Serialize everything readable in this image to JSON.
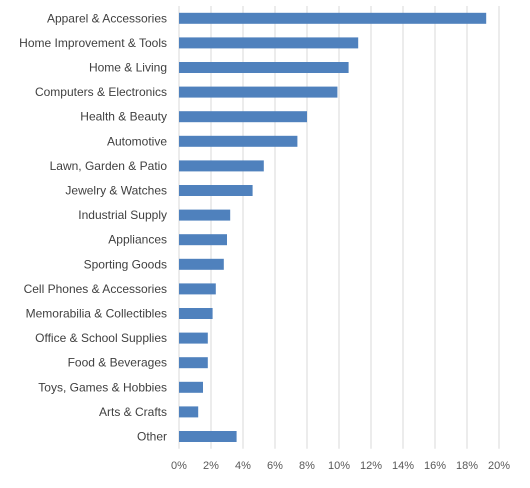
{
  "chart_data": {
    "type": "bar",
    "orientation": "horizontal",
    "categories": [
      "Apparel & Accessories",
      "Home Improvement & Tools",
      "Home & Living",
      "Computers & Electronics",
      "Health & Beauty",
      "Automotive",
      "Lawn, Garden & Patio",
      "Jewelry & Watches",
      "Industrial Supply",
      "Appliances",
      "Sporting Goods",
      "Cell Phones & Accessories",
      "Memorabilia & Collectibles",
      "Office & School Supplies",
      "Food & Beverages",
      "Toys, Games & Hobbies",
      "Arts & Crafts",
      "Other"
    ],
    "values": [
      19.2,
      11.2,
      10.6,
      9.9,
      8.0,
      7.4,
      5.3,
      4.6,
      3.2,
      3.0,
      2.8,
      2.3,
      2.1,
      1.8,
      1.8,
      1.5,
      1.2,
      3.6
    ],
    "x_ticks": [
      "0%",
      "2%",
      "4%",
      "6%",
      "8%",
      "10%",
      "12%",
      "14%",
      "16%",
      "18%",
      "20%"
    ],
    "xlim": [
      0,
      20
    ],
    "grid": true,
    "bar_color": "#4f81bd",
    "grid_color": "#d9d9d9"
  }
}
